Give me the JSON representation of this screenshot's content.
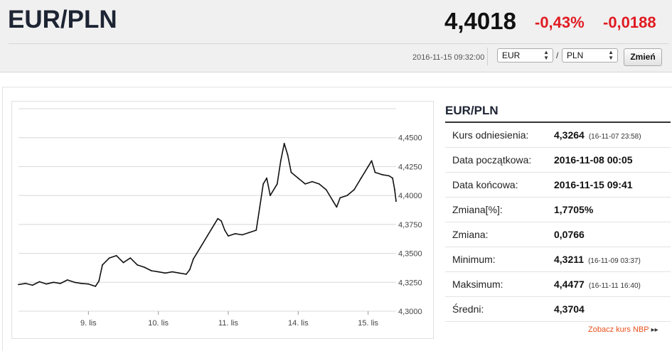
{
  "header": {
    "pair": "EUR/PLN",
    "rate": "4,4018",
    "change_pct": "-0,43%",
    "change_abs": "-0,0188",
    "timestamp": "2016-11-15 09:32:00",
    "from_currency": "EUR",
    "to_currency": "PLN",
    "separator": "/",
    "change_button": "Zmień"
  },
  "panel": {
    "title": "EUR/PLN",
    "rows": [
      {
        "label": "Kurs odniesienia:",
        "value": "4,3264",
        "sub": "(16-11-07 23:58)"
      },
      {
        "label": "Data początkowa:",
        "value": "2016-11-08 00:05",
        "sub": ""
      },
      {
        "label": "Data końcowa:",
        "value": "2016-11-15 09:41",
        "sub": ""
      },
      {
        "label": "Zmiana[%]:",
        "value": "1,7705%",
        "sub": ""
      },
      {
        "label": "Zmiana:",
        "value": "0,0766",
        "sub": ""
      },
      {
        "label": "Minimum:",
        "value": "4,3211",
        "sub": "(16-11-09 03:37)"
      },
      {
        "label": "Maksimum:",
        "value": "4,4477",
        "sub": "(16-11-11 16:40)"
      },
      {
        "label": "Średni:",
        "value": "4,3704",
        "sub": ""
      }
    ],
    "nbp_link": "Zobacz kurs NBP",
    "nbp_arrow": "▸▸"
  },
  "chart_data": {
    "type": "line",
    "title": "",
    "xlabel": "",
    "ylabel": "",
    "ylim": [
      4.3,
      4.45
    ],
    "y_ticks": [
      "4,4500",
      "4,4250",
      "4,4000",
      "4,3750",
      "4,3500",
      "4,3250",
      "4,3000"
    ],
    "y_tick_values": [
      4.45,
      4.425,
      4.4,
      4.375,
      4.35,
      4.325,
      4.3
    ],
    "x_range": [
      0,
      5.4
    ],
    "x_ticks": [
      {
        "label": "9. lis",
        "x": 1.0
      },
      {
        "label": "10. lis",
        "x": 2.0
      },
      {
        "label": "11. lis",
        "x": 3.0
      },
      {
        "label": "14. lis",
        "x": 4.0
      },
      {
        "label": "15. lis",
        "x": 5.0
      }
    ],
    "grid": true,
    "series": [
      {
        "name": "",
        "color": "#111111",
        "points": [
          [
            0.0,
            4.323
          ],
          [
            0.1,
            4.324
          ],
          [
            0.2,
            4.3225
          ],
          [
            0.3,
            4.3255
          ],
          [
            0.4,
            4.3235
          ],
          [
            0.5,
            4.325
          ],
          [
            0.6,
            4.324
          ],
          [
            0.7,
            4.327
          ],
          [
            0.8,
            4.325
          ],
          [
            0.9,
            4.324
          ],
          [
            1.0,
            4.3235
          ],
          [
            1.1,
            4.3215
          ],
          [
            1.15,
            4.326
          ],
          [
            1.2,
            4.34
          ],
          [
            1.3,
            4.346
          ],
          [
            1.4,
            4.348
          ],
          [
            1.5,
            4.342
          ],
          [
            1.6,
            4.346
          ],
          [
            1.7,
            4.34
          ],
          [
            1.8,
            4.338
          ],
          [
            1.9,
            4.335
          ],
          [
            2.0,
            4.334
          ],
          [
            2.1,
            4.333
          ],
          [
            2.2,
            4.334
          ],
          [
            2.3,
            4.333
          ],
          [
            2.4,
            4.332
          ],
          [
            2.45,
            4.336
          ],
          [
            2.5,
            4.345
          ],
          [
            2.6,
            4.355
          ],
          [
            2.7,
            4.365
          ],
          [
            2.8,
            4.375
          ],
          [
            2.85,
            4.38
          ],
          [
            2.9,
            4.378
          ],
          [
            2.95,
            4.37
          ],
          [
            3.0,
            4.365
          ],
          [
            3.1,
            4.367
          ],
          [
            3.2,
            4.366
          ],
          [
            3.3,
            4.368
          ],
          [
            3.4,
            4.37
          ],
          [
            3.45,
            4.39
          ],
          [
            3.5,
            4.41
          ],
          [
            3.55,
            4.415
          ],
          [
            3.6,
            4.4
          ],
          [
            3.7,
            4.41
          ],
          [
            3.75,
            4.43
          ],
          [
            3.8,
            4.445
          ],
          [
            3.85,
            4.435
          ],
          [
            3.9,
            4.42
          ],
          [
            4.0,
            4.415
          ],
          [
            4.1,
            4.41
          ],
          [
            4.2,
            4.412
          ],
          [
            4.3,
            4.41
          ],
          [
            4.4,
            4.405
          ],
          [
            4.5,
            4.395
          ],
          [
            4.55,
            4.39
          ],
          [
            4.6,
            4.398
          ],
          [
            4.7,
            4.4
          ],
          [
            4.8,
            4.405
          ],
          [
            4.9,
            4.415
          ],
          [
            5.0,
            4.425
          ],
          [
            5.05,
            4.43
          ],
          [
            5.1,
            4.42
          ],
          [
            5.2,
            4.418
          ],
          [
            5.3,
            4.417
          ],
          [
            5.35,
            4.415
          ],
          [
            5.38,
            4.405
          ],
          [
            5.4,
            4.395
          ]
        ]
      }
    ]
  }
}
